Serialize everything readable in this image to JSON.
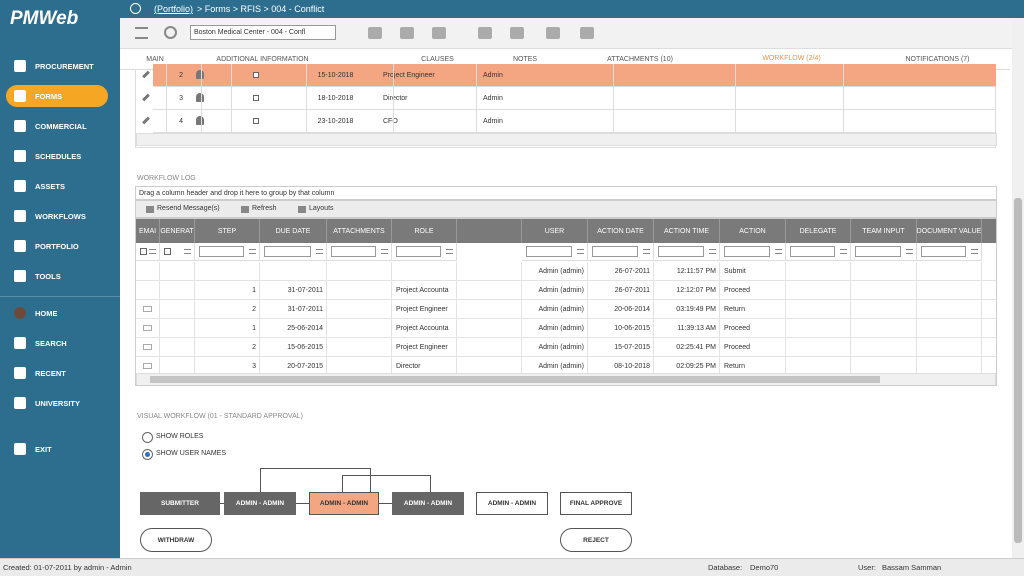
{
  "sidebar": {
    "logo": "PMWeb",
    "menu": [
      {
        "label": "PROCUREMENT"
      },
      {
        "label": "FORMS",
        "active": true
      },
      {
        "label": "COMMERCIAL"
      },
      {
        "label": "SCHEDULES"
      },
      {
        "label": "ASSETS"
      },
      {
        "label": "WORKFLOWS"
      },
      {
        "label": "PORTFOLIO"
      },
      {
        "label": "TOOLS"
      },
      {
        "label": "HOME"
      },
      {
        "label": "SEARCH"
      },
      {
        "label": "RECENT"
      },
      {
        "label": "UNIVERSITY"
      },
      {
        "label": "EXIT"
      }
    ]
  },
  "breadcrumb": {
    "link": "(Portfolio)",
    "path": "> Forms > RFIS > 004 - Conflict"
  },
  "toolbar": {
    "record_select": "Boston Medical Center - 004 - Confl"
  },
  "tabs": [
    {
      "label": "MAIN"
    },
    {
      "label": "ADDITIONAL INFORMATION"
    },
    {
      "label": "CLAUSES"
    },
    {
      "label": "NOTES"
    },
    {
      "label": "ATTACHMENTS (10)"
    },
    {
      "label": "WORKFLOW (2/4)",
      "active": true
    },
    {
      "label": "NOTIFICATIONS (7)"
    }
  ],
  "approvers": {
    "rows": [
      {
        "step": 2,
        "due_date": "15-10-2018",
        "role": "Project Engineer",
        "user": "Admin",
        "selected": true
      },
      {
        "step": 3,
        "due_date": "18-10-2018",
        "role": "Director",
        "user": "Admin"
      },
      {
        "step": 4,
        "due_date": "23-10-2018",
        "role": "CFO",
        "user": "Admin"
      }
    ]
  },
  "workflow_log": {
    "title": "WORKFLOW LOG",
    "group_hint": "Drag a column header and drop it here to group by that column",
    "actions": [
      "Resend Message(s)",
      "Refresh",
      "Layouts"
    ],
    "columns": [
      "EMAI",
      "GENERAT",
      "STEP",
      "DUE DATE",
      "ATTACHMENTS",
      "ROLE",
      "USER",
      "ACTION DATE",
      "ACTION TIME",
      "ACTION",
      "DELEGATE",
      "TEAM INPUT",
      "DOCUMENT VALUE"
    ],
    "rows": [
      {
        "user": "Admin (admin)",
        "action_date": "26-07-2011",
        "action_time": "12:11:57 PM",
        "action": "Submit"
      },
      {
        "step": 1,
        "due_date": "31-07-2011",
        "role": "Project Accounta",
        "user": "Admin (admin)",
        "action_date": "26-07-2011",
        "action_time": "12:12:07 PM",
        "action": "Proceed"
      },
      {
        "step": 2,
        "due_date": "31-07-2011",
        "role": "Project Engineer",
        "user": "Admin (admin)",
        "action_date": "20-06-2014",
        "action_time": "03:19:49 PM",
        "action": "Return"
      },
      {
        "step": 1,
        "due_date": "25-06-2014",
        "role": "Project Accounta",
        "user": "Admin (admin)",
        "action_date": "10-06-2015",
        "action_time": "11:39:13 AM",
        "action": "Proceed"
      },
      {
        "step": 2,
        "due_date": "15-06-2015",
        "role": "Project Engineer",
        "user": "Admin (admin)",
        "action_date": "15-07-2015",
        "action_time": "02:25:41 PM",
        "action": "Proceed"
      },
      {
        "step": 3,
        "due_date": "20-07-2015",
        "role": "Director",
        "user": "Admin (admin)",
        "action_date": "08-10-2018",
        "action_time": "02:09:25 PM",
        "action": "Return"
      }
    ]
  },
  "visual_workflow": {
    "title": "VISUAL WORKFLOW (01 - STANDARD APPROVAL)",
    "options": [
      {
        "label": "SHOW ROLES"
      },
      {
        "label": "SHOW USER NAMES",
        "selected": true
      }
    ],
    "steps": [
      {
        "label": "SUBMITTER",
        "state": "done"
      },
      {
        "label": "ADMIN - ADMIN",
        "state": "done"
      },
      {
        "label": "ADMIN - ADMIN",
        "state": "current"
      },
      {
        "label": "ADMIN - ADMIN",
        "state": "done"
      },
      {
        "label": "ADMIN - ADMIN",
        "state": "pending"
      },
      {
        "label": "FINAL APPROVE",
        "state": "pending"
      }
    ],
    "buttons": [
      "WITHDRAW",
      "REJECT"
    ]
  },
  "status": {
    "created": "Created:  01-07-2011 by admin - Admin",
    "database_label": "Database:",
    "database": "Demo70",
    "user_label": "User:",
    "user": "Bassam Samman"
  }
}
